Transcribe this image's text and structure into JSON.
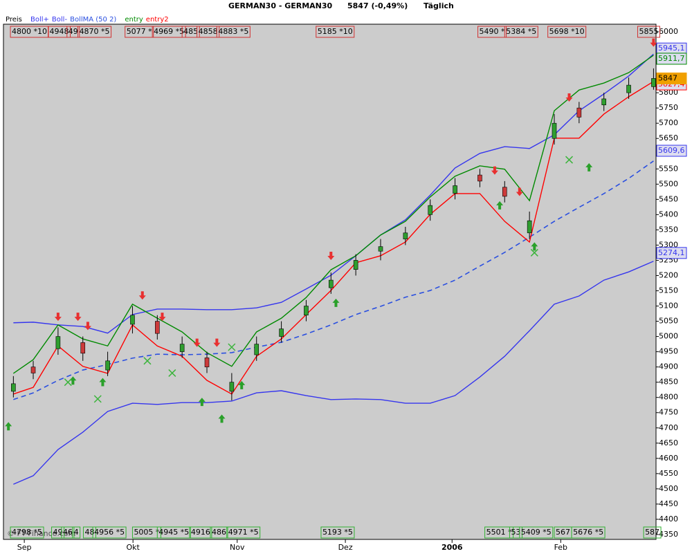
{
  "chart_data": {
    "type": "candlestick",
    "title": "GERMAN30 - GERMAN30",
    "price": "5847 (-0,49%)",
    "period": "Täglich",
    "price_label": "Preis",
    "logo": "© FT-Finance.com",
    "xlim": [
      -1,
      130.5
    ],
    "ylim": [
      4334,
      6025
    ],
    "xticks": [
      {
        "value": 3.2,
        "label": "Sep"
      },
      {
        "value": 25.1,
        "label": "Okt"
      },
      {
        "value": 46.1,
        "label": "Nov"
      },
      {
        "value": 67.9,
        "label": "Dez"
      },
      {
        "value": 89.4,
        "label": "2006"
      },
      {
        "value": 111.3,
        "label": "Feb"
      }
    ],
    "yticks": [
      4350,
      4400,
      4450,
      4500,
      4550,
      4600,
      4650,
      4700,
      4750,
      4800,
      4850,
      4900,
      4950,
      5000,
      5050,
      5100,
      5150,
      5200,
      5250,
      5300,
      5350,
      5400,
      5450,
      5500,
      5550,
      5600,
      5650,
      5700,
      5750,
      5800,
      5850,
      5900,
      5950,
      6000
    ],
    "grid": false,
    "x": [
      1,
      5,
      10,
      15,
      20,
      25,
      30,
      35,
      40,
      45,
      50,
      55,
      60,
      65,
      70,
      75,
      80,
      85,
      90,
      95,
      100,
      105,
      110,
      115,
      120,
      125,
      130
    ],
    "candles": {
      "up_color": "#2f9e2f",
      "down_color": "#cc3a3a",
      "open": [
        4820,
        4900,
        4960,
        4980,
        4890,
        5040,
        5050,
        4950,
        4930,
        4820,
        4940,
        5000,
        5070,
        5160,
        5220,
        5280,
        5320,
        5400,
        5470,
        5530,
        5490,
        5340,
        5650,
        5750,
        5760,
        5800,
        5820
      ],
      "high": [
        4870,
        4920,
        5030,
        5000,
        4950,
        5100,
        5070,
        5000,
        4950,
        4880,
        5000,
        5050,
        5120,
        5210,
        5270,
        5320,
        5360,
        5450,
        5520,
        5550,
        5510,
        5410,
        5730,
        5770,
        5800,
        5850,
        5880
      ],
      "low": [
        4800,
        4860,
        4940,
        4920,
        4870,
        5010,
        4990,
        4930,
        4880,
        4790,
        4920,
        4980,
        5050,
        5140,
        5200,
        5250,
        5300,
        5380,
        5450,
        5490,
        5440,
        5320,
        5630,
        5700,
        5740,
        5780,
        5810
      ],
      "close": [
        4845,
        4880,
        5000,
        4945,
        4920,
        5070,
        5010,
        4975,
        4900,
        4850,
        4975,
        5025,
        5100,
        5185,
        5250,
        5295,
        5340,
        5430,
        5495,
        5510,
        5460,
        5380,
        5700,
        5720,
        5780,
        5825,
        5847
      ]
    },
    "series": [
      {
        "name": "Boll+",
        "color": "#3535ee",
        "dash": false,
        "values": [
          5045,
          5047,
          5038,
          5033,
          5011,
          5072,
          5090,
          5090,
          5088,
          5088,
          5094,
          5112,
          5156,
          5201,
          5265,
          5333,
          5383,
          5464,
          5553,
          5601,
          5623,
          5617,
          5662,
          5741,
          5796,
          5855,
          5927
        ]
      },
      {
        "name": "Boll-",
        "color": "#3535ee",
        "dash": false,
        "values": [
          4515,
          4543,
          4629,
          4686,
          4754,
          4781,
          4777,
          4783,
          4783,
          4788,
          4815,
          4822,
          4806,
          4793,
          4795,
          4793,
          4781,
          4781,
          4806,
          4867,
          4935,
          5019,
          5106,
          5133,
          5185,
          5212,
          5247
        ]
      },
      {
        "name": "BollMA (50 2)",
        "color": "#2a4fe0",
        "dash": true,
        "values": [
          4793,
          4815,
          4856,
          4890,
          4908,
          4929,
          4942,
          4940,
          4942,
          4947,
          4965,
          4981,
          5008,
          5038,
          5072,
          5099,
          5129,
          5151,
          5185,
          5231,
          5276,
          5326,
          5378,
          5424,
          5469,
          5519,
          5576
        ]
      },
      {
        "name": "entry",
        "color": "#008a00",
        "dash": false,
        "values": [
          4879,
          4924,
          5038,
          4992,
          4969,
          5106,
          5060,
          5015,
          4947,
          4902,
          5015,
          5060,
          5128,
          5219,
          5265,
          5333,
          5378,
          5458,
          5526,
          5560,
          5549,
          5446,
          5741,
          5809,
          5832,
          5866,
          5923
        ]
      },
      {
        "name": "entry2",
        "color": "#ff0000",
        "dash": false,
        "values": [
          4811,
          4833,
          4969,
          4902,
          4879,
          5038,
          4969,
          4935,
          4856,
          4811,
          4935,
          4992,
          5072,
          5151,
          5242,
          5265,
          5310,
          5401,
          5469,
          5469,
          5378,
          5310,
          5651,
          5651,
          5730,
          5787,
          5837
        ]
      }
    ],
    "last_values": [
      {
        "value": 5945.1,
        "label": "5945,1",
        "color": "#3535ee"
      },
      {
        "value": 5911.7,
        "label": "5911,7",
        "color": "#008a00"
      },
      {
        "value": 5827.4,
        "label": "5827,4",
        "color": "#ff0000"
      },
      {
        "value": 5847,
        "label": "5847",
        "color": "#f0a000"
      },
      {
        "value": 5609.6,
        "label": "5609,6",
        "color": "#3535ee"
      },
      {
        "value": 5274.1,
        "label": "5274,1",
        "color": "#3535ee"
      }
    ],
    "top_labels": [
      {
        "x": 0.4,
        "label": "4800 *10"
      },
      {
        "x": 8,
        "label": "4948"
      },
      {
        "x": 11.8,
        "label": "49"
      },
      {
        "x": 14,
        "label": "4870 *5"
      },
      {
        "x": 23.5,
        "label": "5077 *"
      },
      {
        "x": 29,
        "label": "4969 *5"
      },
      {
        "x": 35,
        "label": "485"
      },
      {
        "x": 38,
        "label": "4858"
      },
      {
        "x": 42,
        "label": "4883 *5"
      },
      {
        "x": 62,
        "label": "5185 *10"
      },
      {
        "x": 94.6,
        "label": "5490 *"
      },
      {
        "x": 100,
        "label": "5384 *5"
      },
      {
        "x": 108.7,
        "label": "5698 *10"
      },
      {
        "x": 126.8,
        "label": "5855"
      }
    ],
    "bottom_labels": [
      {
        "x": 0.4,
        "label": "4798 *5"
      },
      {
        "x": 8.7,
        "label": "49"
      },
      {
        "x": 10.7,
        "label": "46"
      },
      {
        "x": 12.9,
        "label": "4"
      },
      {
        "x": 15.1,
        "label": "48"
      },
      {
        "x": 17,
        "label": "4956 *5"
      },
      {
        "x": 25,
        "label": "5005 *"
      },
      {
        "x": 30,
        "label": "4945 *5"
      },
      {
        "x": 36.5,
        "label": "4916"
      },
      {
        "x": 40.7,
        "label": "486"
      },
      {
        "x": 44,
        "label": "4971 *5"
      },
      {
        "x": 63,
        "label": "5193 *5"
      },
      {
        "x": 96,
        "label": "5501 *"
      },
      {
        "x": 101,
        "label": "53"
      },
      {
        "x": 103,
        "label": "5409 *5"
      },
      {
        "x": 110,
        "label": "567"
      },
      {
        "x": 113.5,
        "label": "5676 *5"
      },
      {
        "x": 128,
        "label": "587"
      }
    ],
    "signals": {
      "down": {
        "color": "#e83030",
        "x": [
          10,
          14,
          16,
          27,
          31,
          38,
          42,
          65,
          98,
          103,
          113,
          130
        ],
        "y": [
          5060,
          5060,
          5030,
          5130,
          5060,
          4975,
          4975,
          5260,
          5540,
          5470,
          5780,
          5960
        ]
      },
      "up": {
        "color": "#2aa02a",
        "x": [
          0,
          13,
          19,
          39,
          43,
          47,
          66,
          99,
          106,
          117
        ],
        "y": [
          4710,
          4860,
          4855,
          4790,
          4735,
          4845,
          5115,
          5435,
          5300,
          5560
        ]
      },
      "cross": {
        "color": "#3cb43c",
        "x": [
          12,
          18,
          28,
          33,
          45,
          106,
          113
        ],
        "y": [
          4850,
          4795,
          4920,
          4880,
          4965,
          5275,
          5580
        ]
      }
    }
  }
}
